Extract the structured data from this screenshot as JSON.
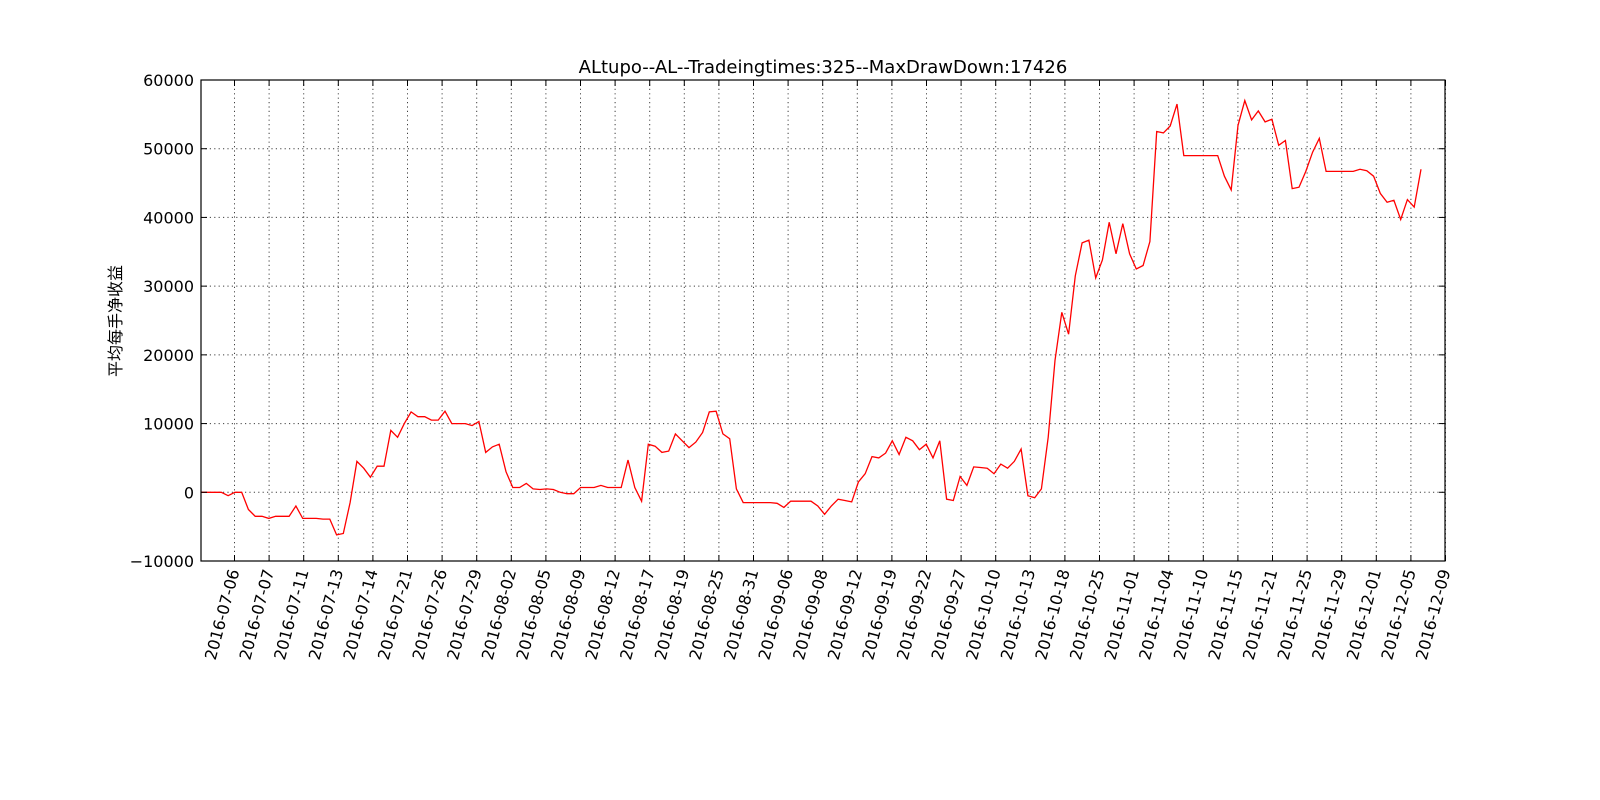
{
  "chart_data": {
    "type": "line",
    "title": "ALtupo--AL--Tradeingtimes:325--MaxDrawDown:17426",
    "xlabel": "",
    "ylabel": "平均每手净收益",
    "ylim": [
      -10000,
      60000
    ],
    "yticks": [
      -10000,
      0,
      10000,
      20000,
      30000,
      40000,
      50000,
      60000
    ],
    "ytick_labels": [
      "−10000",
      "0",
      "10000",
      "20000",
      "30000",
      "40000",
      "50000",
      "60000"
    ],
    "xtick_labels": [
      "2016-07-06",
      "2016-07-07",
      "2016-07-11",
      "2016-07-13",
      "2016-07-14",
      "2016-07-21",
      "2016-07-26",
      "2016-07-29",
      "2016-08-02",
      "2016-08-05",
      "2016-08-09",
      "2016-08-12",
      "2016-08-17",
      "2016-08-19",
      "2016-08-25",
      "2016-08-31",
      "2016-09-06",
      "2016-09-08",
      "2016-09-12",
      "2016-09-19",
      "2016-09-22",
      "2016-09-27",
      "2016-10-10",
      "2016-10-13",
      "2016-10-18",
      "2016-10-25",
      "2016-11-01",
      "2016-11-04",
      "2016-11-10",
      "2016-11-15",
      "2016-11-21",
      "2016-11-25",
      "2016-11-29",
      "2016-12-01",
      "2016-12-05",
      "2016-12-09"
    ],
    "grid": true,
    "series": [
      {
        "color": "#ff0000",
        "values": [
          0,
          0,
          0,
          0,
          -500,
          0,
          0,
          -2500,
          -3500,
          -3500,
          -3800,
          -3500,
          -3500,
          -3500,
          -2000,
          -3800,
          -3800,
          -3800,
          -3900,
          -3900,
          -6200,
          -6000,
          -1500,
          4500,
          3500,
          2200,
          3800,
          3800,
          9000,
          8000,
          10000,
          11700,
          11000,
          11000,
          10500,
          10500,
          11800,
          10000,
          10000,
          10000,
          9700,
          10300,
          5800,
          6600,
          7000,
          3000,
          700,
          700,
          1300,
          500,
          400,
          500,
          400,
          0,
          -200,
          -200,
          700,
          700,
          700,
          1000,
          700,
          700,
          700,
          4700,
          700,
          -1300,
          7000,
          6700,
          5800,
          6000,
          8500,
          7500,
          6500,
          7300,
          8700,
          11700,
          11800,
          8500,
          7800,
          500,
          -1500,
          -1500,
          -1500,
          -1500,
          -1500,
          -1600,
          -2200,
          -1300,
          -1300,
          -1300,
          -1300,
          -2000,
          -3200,
          -2000,
          -1000,
          -1200,
          -1400,
          1500,
          2700,
          5200,
          5000,
          5700,
          7500,
          5500,
          8000,
          7500,
          6200,
          7000,
          5000,
          7500,
          -1000,
          -1200,
          2300,
          1000,
          3700,
          3600,
          3500,
          2700,
          4100,
          3500,
          4500,
          6300,
          -500,
          -800,
          500,
          8000,
          19200,
          26200,
          23000,
          31500,
          36300,
          36700,
          31200,
          33800,
          39300,
          34700,
          39100,
          34700,
          32500,
          33000,
          36500,
          52500,
          52300,
          53300,
          56500,
          49000,
          49000,
          49000,
          49000,
          49000,
          49000,
          46000,
          44000,
          53400,
          57000,
          54200,
          55500,
          53900,
          54300,
          50500,
          51200,
          44200,
          44400,
          46700,
          49500,
          51500,
          46700,
          46700,
          46700,
          46700,
          46700,
          47000,
          46800,
          46000,
          43500,
          42200,
          42500,
          39700,
          42600,
          41500,
          47000
        ]
      }
    ]
  }
}
